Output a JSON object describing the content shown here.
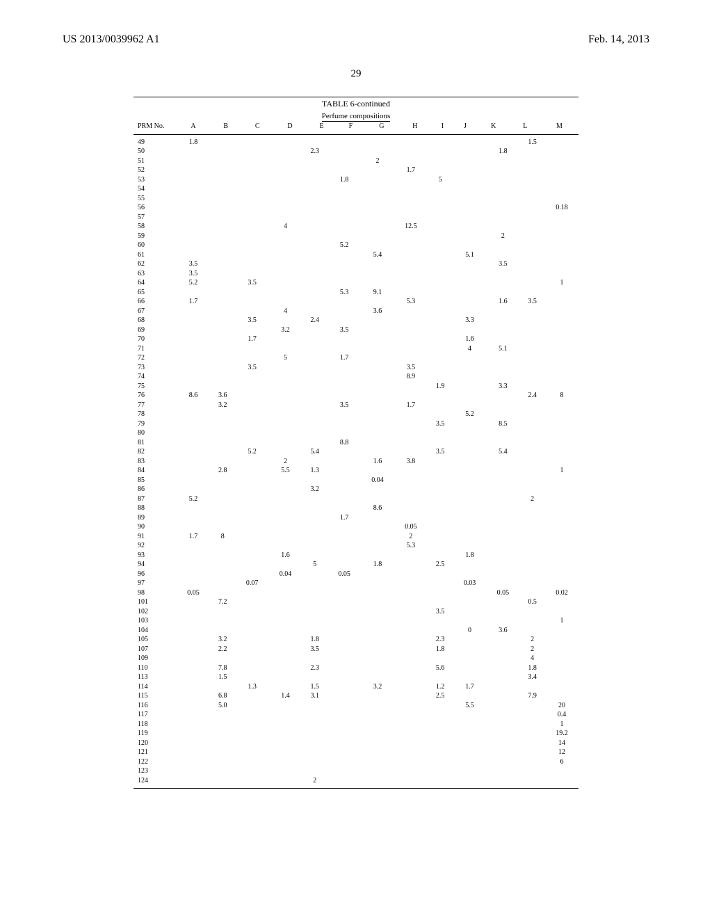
{
  "header": {
    "doc_number": "US 2013/0039962 A1",
    "date": "Feb. 14, 2013"
  },
  "page_number": "29",
  "table": {
    "type": "table",
    "title": "TABLE 6-continued",
    "subtitle": "Perfume compositions",
    "columns": [
      "PRM No.",
      "A",
      "B",
      "C",
      "D",
      "E",
      "F",
      "G",
      "H",
      "I",
      "J",
      "K",
      "L",
      "M"
    ],
    "rows": [
      [
        "49",
        "1.8",
        "",
        "",
        "",
        "",
        "",
        "",
        "",
        "",
        "",
        "",
        "1.5",
        ""
      ],
      [
        "50",
        "",
        "",
        "",
        "",
        "2.3",
        "",
        "",
        "",
        "",
        "",
        "1.8",
        "",
        ""
      ],
      [
        "51",
        "",
        "",
        "",
        "",
        "",
        "",
        "2",
        "",
        "",
        "",
        "",
        "",
        ""
      ],
      [
        "52",
        "",
        "",
        "",
        "",
        "",
        "",
        "",
        "1.7",
        "",
        "",
        "",
        "",
        ""
      ],
      [
        "53",
        "",
        "",
        "",
        "",
        "",
        "1.8",
        "",
        "",
        "5",
        "",
        "",
        "",
        ""
      ],
      [
        "54",
        "",
        "",
        "",
        "",
        "",
        "",
        "",
        "",
        "",
        "",
        "",
        "",
        ""
      ],
      [
        "55",
        "",
        "",
        "",
        "",
        "",
        "",
        "",
        "",
        "",
        "",
        "",
        "",
        ""
      ],
      [
        "56",
        "",
        "",
        "",
        "",
        "",
        "",
        "",
        "",
        "",
        "",
        "",
        "",
        "0.18"
      ],
      [
        "57",
        "",
        "",
        "",
        "",
        "",
        "",
        "",
        "",
        "",
        "",
        "",
        "",
        ""
      ],
      [
        "58",
        "",
        "",
        "",
        "4",
        "",
        "",
        "",
        "12.5",
        "",
        "",
        "",
        "",
        ""
      ],
      [
        "59",
        "",
        "",
        "",
        "",
        "",
        "",
        "",
        "",
        "",
        "",
        "2",
        "",
        ""
      ],
      [
        "60",
        "",
        "",
        "",
        "",
        "",
        "5.2",
        "",
        "",
        "",
        "",
        "",
        "",
        ""
      ],
      [
        "61",
        "",
        "",
        "",
        "",
        "",
        "",
        "5.4",
        "",
        "",
        "5.1",
        "",
        "",
        ""
      ],
      [
        "62",
        "3.5",
        "",
        "",
        "",
        "",
        "",
        "",
        "",
        "",
        "",
        "3.5",
        "",
        ""
      ],
      [
        "63",
        "3.5",
        "",
        "",
        "",
        "",
        "",
        "",
        "",
        "",
        "",
        "",
        "",
        ""
      ],
      [
        "64",
        "5.2",
        "",
        "3.5",
        "",
        "",
        "",
        "",
        "",
        "",
        "",
        "",
        "",
        "1"
      ],
      [
        "65",
        "",
        "",
        "",
        "",
        "",
        "5.3",
        "9.1",
        "",
        "",
        "",
        "",
        "",
        ""
      ],
      [
        "66",
        "1.7",
        "",
        "",
        "",
        "",
        "",
        "",
        "5.3",
        "",
        "",
        "1.6",
        "3.5",
        ""
      ],
      [
        "67",
        "",
        "",
        "",
        "4",
        "",
        "",
        "3.6",
        "",
        "",
        "",
        "",
        "",
        ""
      ],
      [
        "68",
        "",
        "",
        "3.5",
        "",
        "2.4",
        "",
        "",
        "",
        "",
        "3.3",
        "",
        "",
        ""
      ],
      [
        "69",
        "",
        "",
        "",
        "3.2",
        "",
        "3.5",
        "",
        "",
        "",
        "",
        "",
        "",
        ""
      ],
      [
        "70",
        "",
        "",
        "1.7",
        "",
        "",
        "",
        "",
        "",
        "",
        "1.6",
        "",
        "",
        ""
      ],
      [
        "71",
        "",
        "",
        "",
        "",
        "",
        "",
        "",
        "",
        "",
        "4",
        "5.1",
        "",
        ""
      ],
      [
        "72",
        "",
        "",
        "",
        "5",
        "",
        "1.7",
        "",
        "",
        "",
        "",
        "",
        "",
        ""
      ],
      [
        "73",
        "",
        "",
        "3.5",
        "",
        "",
        "",
        "",
        "3.5",
        "",
        "",
        "",
        "",
        ""
      ],
      [
        "74",
        "",
        "",
        "",
        "",
        "",
        "",
        "",
        "8.9",
        "",
        "",
        "",
        "",
        ""
      ],
      [
        "75",
        "",
        "",
        "",
        "",
        "",
        "",
        "",
        "",
        "1.9",
        "",
        "3.3",
        "",
        ""
      ],
      [
        "76",
        "8.6",
        "3.6",
        "",
        "",
        "",
        "",
        "",
        "",
        "",
        "",
        "",
        "2.4",
        "8"
      ],
      [
        "77",
        "",
        "3.2",
        "",
        "",
        "",
        "3.5",
        "",
        "1.7",
        "",
        "",
        "",
        "",
        ""
      ],
      [
        "78",
        "",
        "",
        "",
        "",
        "",
        "",
        "",
        "",
        "",
        "5.2",
        "",
        "",
        ""
      ],
      [
        "79",
        "",
        "",
        "",
        "",
        "",
        "",
        "",
        "",
        "3.5",
        "",
        "8.5",
        "",
        ""
      ],
      [
        "80",
        "",
        "",
        "",
        "",
        "",
        "",
        "",
        "",
        "",
        "",
        "",
        "",
        ""
      ],
      [
        "81",
        "",
        "",
        "",
        "",
        "",
        "8.8",
        "",
        "",
        "",
        "",
        "",
        "",
        ""
      ],
      [
        "82",
        "",
        "",
        "5.2",
        "",
        "5.4",
        "",
        "",
        "",
        "3.5",
        "",
        "5.4",
        "",
        ""
      ],
      [
        "83",
        "",
        "",
        "",
        "2",
        "",
        "",
        "1.6",
        "3.8",
        "",
        "",
        "",
        "",
        ""
      ],
      [
        "84",
        "",
        "2.8",
        "",
        "5.5",
        "1.3",
        "",
        "",
        "",
        "",
        "",
        "",
        "",
        "1"
      ],
      [
        "85",
        "",
        "",
        "",
        "",
        "",
        "",
        "0.04",
        "",
        "",
        "",
        "",
        "",
        ""
      ],
      [
        "86",
        "",
        "",
        "",
        "",
        "3.2",
        "",
        "",
        "",
        "",
        "",
        "",
        "",
        ""
      ],
      [
        "87",
        "5.2",
        "",
        "",
        "",
        "",
        "",
        "",
        "",
        "",
        "",
        "",
        "2",
        ""
      ],
      [
        "88",
        "",
        "",
        "",
        "",
        "",
        "",
        "8.6",
        "",
        "",
        "",
        "",
        "",
        ""
      ],
      [
        "89",
        "",
        "",
        "",
        "",
        "",
        "1.7",
        "",
        "",
        "",
        "",
        "",
        "",
        ""
      ],
      [
        "90",
        "",
        "",
        "",
        "",
        "",
        "",
        "",
        "0.05",
        "",
        "",
        "",
        "",
        ""
      ],
      [
        "91",
        "1.7",
        "8",
        "",
        "",
        "",
        "",
        "",
        "2",
        "",
        "",
        "",
        "",
        ""
      ],
      [
        "92",
        "",
        "",
        "",
        "",
        "",
        "",
        "",
        "5.3",
        "",
        "",
        "",
        "",
        ""
      ],
      [
        "93",
        "",
        "",
        "",
        "1.6",
        "",
        "",
        "",
        "",
        "",
        "1.8",
        "",
        "",
        ""
      ],
      [
        "94",
        "",
        "",
        "",
        "",
        "5",
        "",
        "1.8",
        "",
        "2.5",
        "",
        "",
        "",
        ""
      ],
      [
        "96",
        "",
        "",
        "",
        "0.04",
        "",
        "0.05",
        "",
        "",
        "",
        "",
        "",
        "",
        ""
      ],
      [
        "97",
        "",
        "",
        "0.07",
        "",
        "",
        "",
        "",
        "",
        "",
        "0.03",
        "",
        "",
        ""
      ],
      [
        "98",
        "0.05",
        "",
        "",
        "",
        "",
        "",
        "",
        "",
        "",
        "",
        "0.05",
        "",
        "0.02"
      ],
      [
        "101",
        "",
        "7.2",
        "",
        "",
        "",
        "",
        "",
        "",
        "",
        "",
        "",
        "0.5",
        ""
      ],
      [
        "102",
        "",
        "",
        "",
        "",
        "",
        "",
        "",
        "",
        "3.5",
        "",
        "",
        "",
        ""
      ],
      [
        "103",
        "",
        "",
        "",
        "",
        "",
        "",
        "",
        "",
        "",
        "",
        "",
        "",
        "1"
      ],
      [
        "104",
        "",
        "",
        "",
        "",
        "",
        "",
        "",
        "",
        "",
        "0",
        "3.6",
        "",
        ""
      ],
      [
        "105",
        "",
        "3.2",
        "",
        "",
        "1.8",
        "",
        "",
        "",
        "2.3",
        "",
        "",
        "2",
        ""
      ],
      [
        "107",
        "",
        "2.2",
        "",
        "",
        "3.5",
        "",
        "",
        "",
        "1.8",
        "",
        "",
        "2",
        ""
      ],
      [
        "109",
        "",
        "",
        "",
        "",
        "",
        "",
        "",
        "",
        "",
        "",
        "",
        "4",
        ""
      ],
      [
        "110",
        "",
        "7.8",
        "",
        "",
        "2.3",
        "",
        "",
        "",
        "5.6",
        "",
        "",
        "1.8",
        ""
      ],
      [
        "113",
        "",
        "1.5",
        "",
        "",
        "",
        "",
        "",
        "",
        "",
        "",
        "",
        "3.4",
        ""
      ],
      [
        "114",
        "",
        "",
        "1.3",
        "",
        "1.5",
        "",
        "3.2",
        "",
        "1.2",
        "1.7",
        "",
        "",
        ""
      ],
      [
        "115",
        "",
        "6.8",
        "",
        "1.4",
        "3.1",
        "",
        "",
        "",
        "2.5",
        "",
        "",
        "7.9",
        ""
      ],
      [
        "116",
        "",
        "5.0",
        "",
        "",
        "",
        "",
        "",
        "",
        "",
        "5.5",
        "",
        "",
        "20"
      ],
      [
        "117",
        "",
        "",
        "",
        "",
        "",
        "",
        "",
        "",
        "",
        "",
        "",
        "",
        "0.4"
      ],
      [
        "118",
        "",
        "",
        "",
        "",
        "",
        "",
        "",
        "",
        "",
        "",
        "",
        "",
        "1"
      ],
      [
        "119",
        "",
        "",
        "",
        "",
        "",
        "",
        "",
        "",
        "",
        "",
        "",
        "",
        "19.2"
      ],
      [
        "120",
        "",
        "",
        "",
        "",
        "",
        "",
        "",
        "",
        "",
        "",
        "",
        "",
        "14"
      ],
      [
        "121",
        "",
        "",
        "",
        "",
        "",
        "",
        "",
        "",
        "",
        "",
        "",
        "",
        "12"
      ],
      [
        "122",
        "",
        "",
        "",
        "",
        "",
        "",
        "",
        "",
        "",
        "",
        "",
        "",
        "6"
      ],
      [
        "123",
        "",
        "",
        "",
        "",
        "",
        "",
        "",
        "",
        "",
        "",
        "",
        "",
        ""
      ],
      [
        "124",
        "",
        "",
        "",
        "",
        "2",
        "",
        "",
        "",
        "",
        "",
        "",
        "",
        ""
      ]
    ]
  }
}
